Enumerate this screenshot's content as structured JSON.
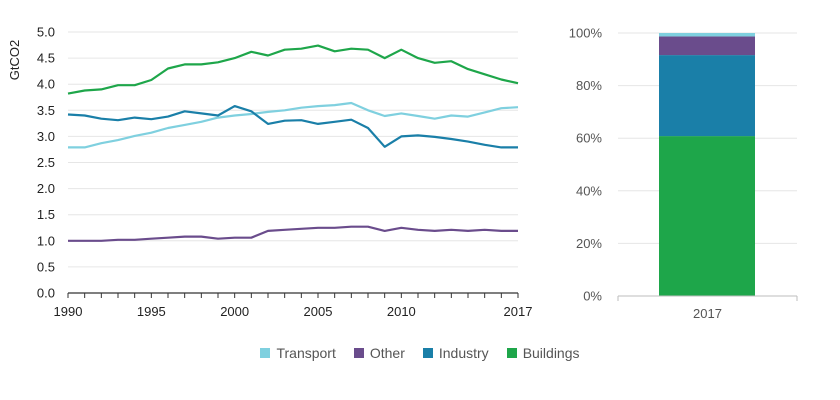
{
  "chart_data": [
    {
      "type": "line",
      "ylabel": "GtCO2",
      "xlabel": "",
      "ylim": [
        0,
        5
      ],
      "y_ticks": [
        "0.0",
        "0.5",
        "1.0",
        "1.5",
        "2.0",
        "2.5",
        "3.0",
        "3.5",
        "4.0",
        "4.5",
        "5.0"
      ],
      "x_ticks": [
        "1990",
        "1995",
        "2000",
        "2005",
        "2010",
        "2017"
      ],
      "grid": "horizontal",
      "x": [
        1990,
        1991,
        1992,
        1993,
        1994,
        1995,
        1996,
        1997,
        1998,
        1999,
        2000,
        2001,
        2002,
        2003,
        2004,
        2005,
        2006,
        2007,
        2008,
        2009,
        2010,
        2011,
        2012,
        2013,
        2014,
        2015,
        2016,
        2017
      ],
      "series": [
        {
          "name": "Transport",
          "color": "#7fd0df",
          "values": [
            2.79,
            2.79,
            2.87,
            2.93,
            3.01,
            3.07,
            3.16,
            3.22,
            3.28,
            3.36,
            3.4,
            3.43,
            3.47,
            3.5,
            3.55,
            3.58,
            3.6,
            3.64,
            3.5,
            3.39,
            3.44,
            3.39,
            3.34,
            3.4,
            3.38,
            3.46,
            3.54,
            3.56
          ]
        },
        {
          "name": "Other",
          "color": "#6a4c8c",
          "values": [
            1.0,
            1.0,
            1.0,
            1.02,
            1.02,
            1.04,
            1.06,
            1.08,
            1.08,
            1.04,
            1.06,
            1.06,
            1.19,
            1.21,
            1.23,
            1.25,
            1.25,
            1.27,
            1.27,
            1.19,
            1.25,
            1.21,
            1.19,
            1.21,
            1.19,
            1.21,
            1.19,
            1.19
          ]
        },
        {
          "name": "Industry",
          "color": "#1a7fa8",
          "values": [
            3.42,
            3.4,
            3.34,
            3.31,
            3.36,
            3.33,
            3.38,
            3.48,
            3.44,
            3.4,
            3.58,
            3.48,
            3.24,
            3.3,
            3.31,
            3.24,
            3.28,
            3.32,
            3.16,
            2.8,
            3.0,
            3.02,
            2.99,
            2.95,
            2.9,
            2.84,
            2.79,
            2.79
          ]
        },
        {
          "name": "Buildings",
          "color": "#1ea64a",
          "values": [
            3.82,
            3.88,
            3.9,
            3.98,
            3.98,
            4.08,
            4.3,
            4.38,
            4.38,
            4.42,
            4.5,
            4.62,
            4.55,
            4.66,
            4.68,
            4.74,
            4.63,
            4.68,
            4.66,
            4.5,
            4.66,
            4.5,
            4.41,
            4.44,
            4.29,
            4.19,
            4.09,
            4.02
          ]
        }
      ]
    },
    {
      "type": "bar",
      "stacked": true,
      "percent": true,
      "categories": [
        "2017"
      ],
      "ylim": [
        0,
        100
      ],
      "y_ticks": [
        "0%",
        "20%",
        "40%",
        "60%",
        "80%",
        "100%"
      ],
      "series": [
        {
          "name": "Buildings",
          "color": "#1ea64a",
          "values": [
            60.8
          ]
        },
        {
          "name": "Industry",
          "color": "#1a7fa8",
          "values": [
            30.8
          ]
        },
        {
          "name": "Other",
          "color": "#6a4c8c",
          "values": [
            7.1
          ]
        },
        {
          "name": "Transport",
          "color": "#7fd0df",
          "values": [
            1.3
          ]
        }
      ]
    }
  ],
  "legend": {
    "placement": "bottom",
    "items": [
      {
        "label": "Transport",
        "color": "#7fd0df"
      },
      {
        "label": "Other",
        "color": "#6a4c8c"
      },
      {
        "label": "Industry",
        "color": "#1a7fa8"
      },
      {
        "label": "Buildings",
        "color": "#1ea64a"
      }
    ]
  }
}
